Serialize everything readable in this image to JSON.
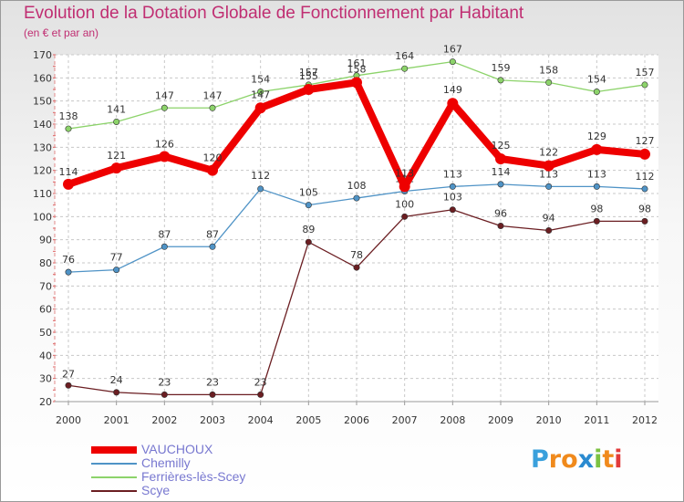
{
  "title": "Evolution de la Dotation Globale de Fonctionnement par Habitant",
  "subtitle": "(en € et par an)",
  "logo": {
    "letters": [
      "P",
      "r",
      "o",
      "x",
      "i",
      "t",
      "i"
    ],
    "colors": [
      "#3aa0dc",
      "#f08a1c",
      "#f08a1c",
      "#2a8ad0",
      "#7cc242",
      "#f08a1c",
      "#e23a3a"
    ]
  },
  "chart_data": {
    "type": "line",
    "title": "Evolution de la Dotation Globale de Fonctionnement par Habitant",
    "ylabel": "(en € et par an)",
    "xlabel": "",
    "ylim": [
      20,
      170
    ],
    "yticks": [
      20,
      30,
      40,
      50,
      60,
      70,
      80,
      90,
      100,
      110,
      120,
      130,
      140,
      150,
      160,
      170
    ],
    "x": [
      "2000",
      "2001",
      "2002",
      "2003",
      "2004",
      "2005",
      "2006",
      "2007",
      "2008",
      "2009",
      "2010",
      "2011",
      "2012"
    ],
    "grid": true,
    "legend_position": "bottom-left",
    "series": [
      {
        "name": "Scye",
        "color": "#6b1e22",
        "style": "thin",
        "values": [
          27,
          24,
          23,
          23,
          23,
          89,
          78,
          100,
          103,
          96,
          94,
          98,
          98
        ]
      },
      {
        "name": "Chemilly",
        "color": "#4f93c6",
        "style": "thin",
        "values": [
          76,
          77,
          87,
          87,
          112,
          105,
          108,
          111,
          113,
          114,
          113,
          113,
          112
        ]
      },
      {
        "name": "Ferrières-lès-Scey",
        "color": "#8cd36a",
        "style": "thin",
        "values": [
          138,
          141,
          147,
          147,
          154,
          157,
          161,
          164,
          167,
          159,
          158,
          154,
          157
        ]
      },
      {
        "name": "VAUCHOUX",
        "color": "#ee0000",
        "style": "thick",
        "values": [
          114,
          121,
          126,
          120,
          147,
          155,
          158,
          113,
          149,
          125,
          122,
          129,
          127
        ]
      }
    ],
    "legend_order": [
      "VAUCHOUX",
      "Chemilly",
      "Ferrières-lès-Scey",
      "Scye"
    ]
  }
}
